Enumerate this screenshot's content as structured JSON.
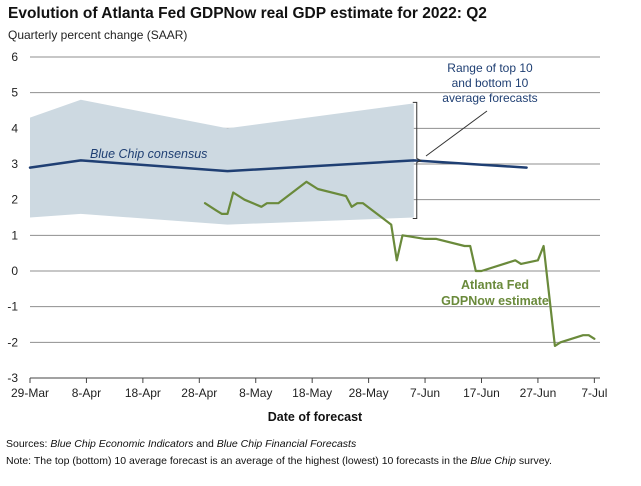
{
  "chart_data": {
    "type": "line",
    "title": "Evolution of Atlanta Fed GDPNow real GDP estimate for 2022: Q2",
    "subtitle": "Quarterly percent change (SAAR)",
    "xlabel": "Date of forecast",
    "ylabel": "",
    "ylim": [
      -3,
      6
    ],
    "yticks": [
      "6",
      "5",
      "4",
      "3",
      "2",
      "1",
      "0",
      "-1",
      "-2",
      "-3"
    ],
    "xlim": [
      "2022-03-29",
      "2022-07-08"
    ],
    "xticks": [
      {
        "date": "2022-03-29",
        "label": "29-Mar"
      },
      {
        "date": "2022-04-08",
        "label": "8-Apr"
      },
      {
        "date": "2022-04-18",
        "label": "18-Apr"
      },
      {
        "date": "2022-04-28",
        "label": "28-Apr"
      },
      {
        "date": "2022-05-08",
        "label": "8-May"
      },
      {
        "date": "2022-05-18",
        "label": "18-May"
      },
      {
        "date": "2022-05-28",
        "label": "28-May"
      },
      {
        "date": "2022-06-07",
        "label": "7-Jun"
      },
      {
        "date": "2022-06-17",
        "label": "17-Jun"
      },
      {
        "date": "2022-06-27",
        "label": "27-Jun"
      },
      {
        "date": "2022-07-07",
        "label": "7-Jul"
      }
    ],
    "grid": "horizontal",
    "colors": {
      "range": "#cdd9e1",
      "consensus": "#1f3f73",
      "gdpnow": "#6a8a3b",
      "grid": "#8f8f8f"
    },
    "range_band": {
      "name": "Range of top 10 and bottom 10 average forecasts",
      "x": [
        "2022-03-29",
        "2022-04-07",
        "2022-05-03",
        "2022-06-05"
      ],
      "top": [
        4.3,
        4.8,
        4.0,
        4.7
      ],
      "bottom": [
        1.5,
        1.6,
        1.3,
        1.5
      ]
    },
    "series": [
      {
        "name": "Blue Chip consensus",
        "x": [
          "2022-03-29",
          "2022-04-07",
          "2022-05-03",
          "2022-06-05",
          "2022-06-25"
        ],
        "values": [
          2.9,
          3.1,
          2.8,
          3.1,
          2.9
        ]
      },
      {
        "name": "Atlanta Fed GDPNow estimate",
        "x": [
          "2022-04-29",
          "2022-05-01",
          "2022-05-02",
          "2022-05-03",
          "2022-05-04",
          "2022-05-06",
          "2022-05-09",
          "2022-05-10",
          "2022-05-11",
          "2022-05-12",
          "2022-05-17",
          "2022-05-18",
          "2022-05-19",
          "2022-05-24",
          "2022-05-25",
          "2022-05-26",
          "2022-05-27",
          "2022-06-01",
          "2022-06-02",
          "2022-06-03",
          "2022-06-07",
          "2022-06-08",
          "2022-06-09",
          "2022-06-14",
          "2022-06-15",
          "2022-06-16",
          "2022-06-17",
          "2022-06-23",
          "2022-06-24",
          "2022-06-27",
          "2022-06-28",
          "2022-06-30",
          "2022-07-01",
          "2022-07-05",
          "2022-07-06",
          "2022-07-07"
        ],
        "values": [
          1.9,
          1.7,
          1.6,
          1.6,
          2.2,
          2.0,
          1.8,
          1.9,
          1.9,
          1.9,
          2.5,
          2.4,
          2.3,
          2.1,
          1.8,
          1.9,
          1.9,
          1.3,
          0.3,
          1.0,
          0.9,
          0.9,
          0.9,
          0.7,
          0.7,
          0.0,
          0.0,
          0.3,
          0.2,
          0.3,
          0.7,
          -2.1,
          -2.0,
          -1.8,
          -1.8,
          -1.9
        ]
      }
    ],
    "annotations": [
      {
        "target": "range",
        "lines": [
          "Range of top 10",
          "and bottom 10",
          "average forecasts"
        ]
      },
      {
        "target": "consensus",
        "text": "Blue Chip consensus"
      },
      {
        "target": "gdpnow",
        "lines": [
          "Atlanta Fed",
          "GDPNow estimate"
        ]
      }
    ]
  },
  "footer": {
    "sources_label": "Sources:",
    "sources_text_1": "Blue Chip Economic Indicators",
    "sources_and": "and",
    "sources_text_2": "Blue Chip Financial Forecasts",
    "note_label": "Note:",
    "note_text_1": "The top (bottom) 10 average forecast is an average of the highest (lowest) 10 forecasts in the",
    "note_italic": "Blue Chip",
    "note_text_2": "survey."
  }
}
